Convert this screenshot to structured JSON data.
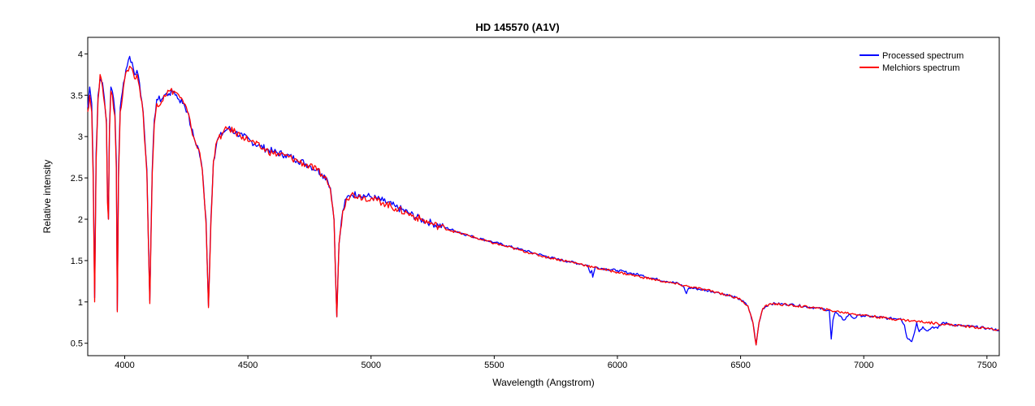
{
  "chart_data": {
    "type": "line",
    "title": "HD 145570 (A1V)",
    "xlabel": "Wavelength (Angstrom)",
    "ylabel": "Relative intensity",
    "xlim": [
      3850,
      7550
    ],
    "ylim": [
      0.35,
      4.2
    ],
    "xticks": [
      4000,
      4500,
      5000,
      5500,
      6000,
      6500,
      7000,
      7500
    ],
    "yticks": [
      0.5,
      1,
      1.5,
      2,
      2.5,
      3,
      3.5,
      4
    ],
    "grid": false,
    "legend": "top-right",
    "series": [
      {
        "name": "Processed spectrum",
        "color": "#0000ff",
        "points": [
          [
            3850,
            3.35
          ],
          [
            3858,
            3.6
          ],
          [
            3866,
            3.4
          ],
          [
            3872,
            2.6
          ],
          [
            3878,
            1.05
          ],
          [
            3884,
            2.8
          ],
          [
            3892,
            3.5
          ],
          [
            3900,
            3.7
          ],
          [
            3910,
            3.65
          ],
          [
            3918,
            3.45
          ],
          [
            3926,
            3.2
          ],
          [
            3930,
            2.3
          ],
          [
            3934,
            2.0
          ],
          [
            3938,
            3.1
          ],
          [
            3944,
            3.6
          ],
          [
            3950,
            3.55
          ],
          [
            3960,
            3.3
          ],
          [
            3966,
            2.7
          ],
          [
            3970,
            0.9
          ],
          [
            3975,
            2.6
          ],
          [
            3982,
            3.35
          ],
          [
            3995,
            3.65
          ],
          [
            4010,
            3.85
          ],
          [
            4020,
            3.97
          ],
          [
            4030,
            3.9
          ],
          [
            4040,
            3.75
          ],
          [
            4050,
            3.8
          ],
          [
            4060,
            3.65
          ],
          [
            4075,
            3.3
          ],
          [
            4090,
            2.6
          ],
          [
            4102,
            1.02
          ],
          [
            4112,
            2.6
          ],
          [
            4120,
            3.2
          ],
          [
            4130,
            3.45
          ],
          [
            4150,
            3.45
          ],
          [
            4160,
            3.5
          ],
          [
            4180,
            3.52
          ],
          [
            4200,
            3.55
          ],
          [
            4220,
            3.45
          ],
          [
            4240,
            3.4
          ],
          [
            4255,
            3.3
          ],
          [
            4270,
            3.1
          ],
          [
            4285,
            2.95
          ],
          [
            4300,
            2.85
          ],
          [
            4315,
            2.6
          ],
          [
            4330,
            2.0
          ],
          [
            4340,
            0.95
          ],
          [
            4350,
            2.0
          ],
          [
            4360,
            2.7
          ],
          [
            4375,
            2.95
          ],
          [
            4400,
            3.05
          ],
          [
            4420,
            3.1
          ],
          [
            4450,
            3.05
          ],
          [
            4480,
            3.0
          ],
          [
            4510,
            2.95
          ],
          [
            4550,
            2.88
          ],
          [
            4600,
            2.82
          ],
          [
            4650,
            2.78
          ],
          [
            4700,
            2.72
          ],
          [
            4750,
            2.65
          ],
          [
            4780,
            2.6
          ],
          [
            4800,
            2.55
          ],
          [
            4820,
            2.5
          ],
          [
            4835,
            2.38
          ],
          [
            4850,
            2.0
          ],
          [
            4861,
            0.82
          ],
          [
            4870,
            1.7
          ],
          [
            4885,
            2.1
          ],
          [
            4900,
            2.25
          ],
          [
            4920,
            2.3
          ],
          [
            4950,
            2.3
          ],
          [
            5000,
            2.27
          ],
          [
            5050,
            2.22
          ],
          [
            5100,
            2.15
          ],
          [
            5150,
            2.08
          ],
          [
            5200,
            2.0
          ],
          [
            5250,
            1.95
          ],
          [
            5300,
            1.9
          ],
          [
            5350,
            1.85
          ],
          [
            5400,
            1.8
          ],
          [
            5450,
            1.76
          ],
          [
            5500,
            1.72
          ],
          [
            5550,
            1.68
          ],
          [
            5600,
            1.64
          ],
          [
            5650,
            1.6
          ],
          [
            5700,
            1.56
          ],
          [
            5750,
            1.52
          ],
          [
            5800,
            1.49
          ],
          [
            5850,
            1.46
          ],
          [
            5880,
            1.44
          ],
          [
            5890,
            1.35
          ],
          [
            5896,
            1.38
          ],
          [
            5900,
            1.3
          ],
          [
            5910,
            1.42
          ],
          [
            5950,
            1.4
          ],
          [
            6000,
            1.38
          ],
          [
            6050,
            1.35
          ],
          [
            6100,
            1.32
          ],
          [
            6150,
            1.28
          ],
          [
            6200,
            1.25
          ],
          [
            6250,
            1.22
          ],
          [
            6270,
            1.18
          ],
          [
            6280,
            1.1
          ],
          [
            6290,
            1.17
          ],
          [
            6320,
            1.16
          ],
          [
            6400,
            1.12
          ],
          [
            6450,
            1.08
          ],
          [
            6500,
            1.03
          ],
          [
            6530,
            0.95
          ],
          [
            6550,
            0.75
          ],
          [
            6563,
            0.48
          ],
          [
            6575,
            0.75
          ],
          [
            6590,
            0.92
          ],
          [
            6620,
            0.98
          ],
          [
            6700,
            0.97
          ],
          [
            6800,
            0.93
          ],
          [
            6860,
            0.9
          ],
          [
            6868,
            0.55
          ],
          [
            6875,
            0.78
          ],
          [
            6885,
            0.88
          ],
          [
            6900,
            0.83
          ],
          [
            6920,
            0.78
          ],
          [
            6940,
            0.85
          ],
          [
            6960,
            0.8
          ],
          [
            6980,
            0.84
          ],
          [
            7000,
            0.83
          ],
          [
            7050,
            0.82
          ],
          [
            7100,
            0.8
          ],
          [
            7150,
            0.8
          ],
          [
            7165,
            0.72
          ],
          [
            7175,
            0.57
          ],
          [
            7185,
            0.55
          ],
          [
            7195,
            0.52
          ],
          [
            7205,
            0.62
          ],
          [
            7215,
            0.75
          ],
          [
            7225,
            0.64
          ],
          [
            7240,
            0.7
          ],
          [
            7260,
            0.65
          ],
          [
            7280,
            0.7
          ],
          [
            7300,
            0.68
          ],
          [
            7320,
            0.75
          ],
          [
            7350,
            0.73
          ],
          [
            7400,
            0.71
          ],
          [
            7450,
            0.7
          ],
          [
            7500,
            0.68
          ],
          [
            7550,
            0.66
          ]
        ]
      },
      {
        "name": "Melchiors spectrum",
        "color": "#ff0000",
        "points": [
          [
            3850,
            3.3
          ],
          [
            3858,
            3.5
          ],
          [
            3866,
            3.3
          ],
          [
            3872,
            2.5
          ],
          [
            3878,
            1.0
          ],
          [
            3884,
            2.7
          ],
          [
            3892,
            3.45
          ],
          [
            3900,
            3.75
          ],
          [
            3910,
            3.6
          ],
          [
            3918,
            3.4
          ],
          [
            3926,
            3.15
          ],
          [
            3930,
            2.2
          ],
          [
            3934,
            2.0
          ],
          [
            3938,
            3.05
          ],
          [
            3944,
            3.55
          ],
          [
            3950,
            3.5
          ],
          [
            3960,
            3.25
          ],
          [
            3966,
            2.6
          ],
          [
            3970,
            0.88
          ],
          [
            3975,
            2.5
          ],
          [
            3982,
            3.3
          ],
          [
            3995,
            3.6
          ],
          [
            4010,
            3.8
          ],
          [
            4020,
            3.85
          ],
          [
            4030,
            3.82
          ],
          [
            4040,
            3.7
          ],
          [
            4050,
            3.75
          ],
          [
            4060,
            3.6
          ],
          [
            4075,
            3.28
          ],
          [
            4090,
            2.55
          ],
          [
            4102,
            0.98
          ],
          [
            4112,
            2.55
          ],
          [
            4120,
            3.15
          ],
          [
            4130,
            3.4
          ],
          [
            4150,
            3.42
          ],
          [
            4160,
            3.5
          ],
          [
            4180,
            3.55
          ],
          [
            4200,
            3.55
          ],
          [
            4220,
            3.5
          ],
          [
            4240,
            3.4
          ],
          [
            4255,
            3.3
          ],
          [
            4270,
            3.1
          ],
          [
            4285,
            2.95
          ],
          [
            4300,
            2.85
          ],
          [
            4315,
            2.6
          ],
          [
            4330,
            1.95
          ],
          [
            4340,
            0.93
          ],
          [
            4350,
            1.95
          ],
          [
            4360,
            2.7
          ],
          [
            4375,
            2.95
          ],
          [
            4400,
            3.05
          ],
          [
            4420,
            3.1
          ],
          [
            4450,
            3.05
          ],
          [
            4480,
            3.0
          ],
          [
            4510,
            2.95
          ],
          [
            4550,
            2.87
          ],
          [
            4600,
            2.8
          ],
          [
            4650,
            2.77
          ],
          [
            4700,
            2.71
          ],
          [
            4750,
            2.64
          ],
          [
            4780,
            2.59
          ],
          [
            4800,
            2.54
          ],
          [
            4820,
            2.48
          ],
          [
            4835,
            2.36
          ],
          [
            4850,
            1.98
          ],
          [
            4861,
            0.82
          ],
          [
            4870,
            1.7
          ],
          [
            4885,
            2.1
          ],
          [
            4900,
            2.25
          ],
          [
            4920,
            2.3
          ],
          [
            4950,
            2.28
          ],
          [
            5000,
            2.25
          ],
          [
            5050,
            2.2
          ],
          [
            5100,
            2.13
          ],
          [
            5150,
            2.07
          ],
          [
            5200,
            2.0
          ],
          [
            5250,
            1.94
          ],
          [
            5300,
            1.89
          ],
          [
            5350,
            1.84
          ],
          [
            5400,
            1.8
          ],
          [
            5450,
            1.75
          ],
          [
            5500,
            1.71
          ],
          [
            5550,
            1.67
          ],
          [
            5600,
            1.63
          ],
          [
            5650,
            1.59
          ],
          [
            5700,
            1.55
          ],
          [
            5750,
            1.52
          ],
          [
            5800,
            1.49
          ],
          [
            5850,
            1.46
          ],
          [
            5900,
            1.42
          ],
          [
            5950,
            1.39
          ],
          [
            6000,
            1.36
          ],
          [
            6050,
            1.33
          ],
          [
            6100,
            1.3
          ],
          [
            6150,
            1.27
          ],
          [
            6200,
            1.24
          ],
          [
            6250,
            1.21
          ],
          [
            6300,
            1.18
          ],
          [
            6350,
            1.15
          ],
          [
            6400,
            1.12
          ],
          [
            6450,
            1.08
          ],
          [
            6500,
            1.03
          ],
          [
            6530,
            0.95
          ],
          [
            6550,
            0.75
          ],
          [
            6563,
            0.48
          ],
          [
            6575,
            0.75
          ],
          [
            6590,
            0.92
          ],
          [
            6620,
            0.98
          ],
          [
            6700,
            0.96
          ],
          [
            6800,
            0.93
          ],
          [
            6900,
            0.88
          ],
          [
            7000,
            0.84
          ],
          [
            7100,
            0.8
          ],
          [
            7200,
            0.77
          ],
          [
            7300,
            0.74
          ],
          [
            7400,
            0.71
          ],
          [
            7500,
            0.68
          ],
          [
            7550,
            0.66
          ]
        ]
      }
    ]
  }
}
